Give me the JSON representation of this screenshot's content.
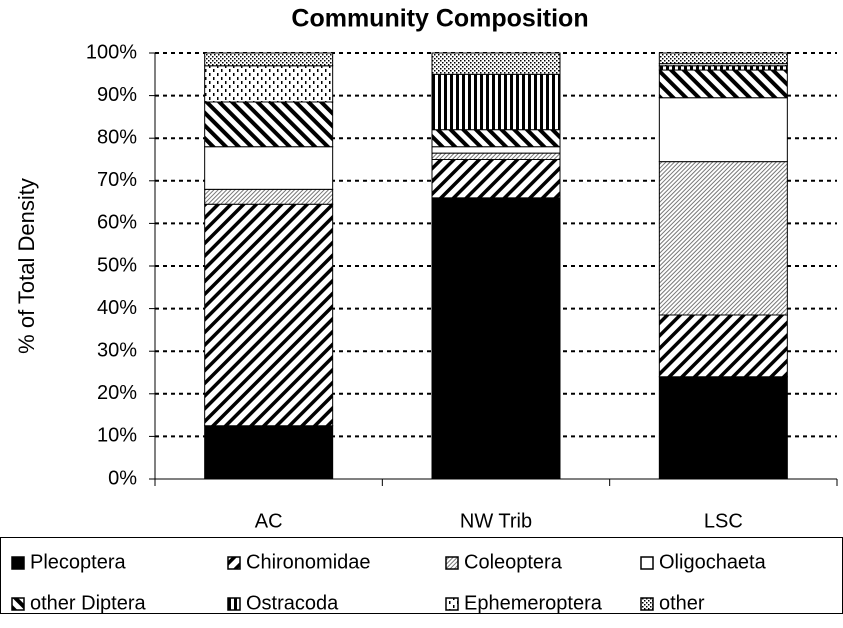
{
  "chart_data": {
    "type": "stacked-bar",
    "title": "Community Composition",
    "y_label": "% of Total Density",
    "categories": [
      "AC",
      "NW Trib",
      "LSC"
    ],
    "series": [
      {
        "name": "Plecoptera",
        "color": "#000000",
        "pattern": "solid",
        "values": [
          12.5,
          66,
          24
        ]
      },
      {
        "name": "Chironomidae",
        "color": "#000000",
        "pattern": "wide-up-diagonal",
        "values": [
          52,
          9,
          14.5
        ]
      },
      {
        "name": "Coleoptera",
        "color": "#000000",
        "pattern": "fine-up-diagonal",
        "values": [
          3.5,
          1.5,
          36
        ]
      },
      {
        "name": "Oligochaeta",
        "color": "#ffffff",
        "pattern": "solid",
        "values": [
          10,
          1.5,
          15
        ]
      },
      {
        "name": "other Diptera",
        "color": "#000000",
        "pattern": "wide-down-diagonal",
        "values": [
          10.5,
          4,
          6.5
        ]
      },
      {
        "name": "Ostracoda",
        "color": "#000000",
        "pattern": "vertical",
        "values": [
          0,
          13,
          1
        ]
      },
      {
        "name": "Ephemeroptera",
        "color": "#000000",
        "pattern": "sparse-dots",
        "values": [
          8.5,
          0,
          0.5
        ]
      },
      {
        "name": "other",
        "color": "#000000",
        "pattern": "dense-dots",
        "values": [
          3,
          5,
          2.5
        ]
      }
    ],
    "ylim": [
      0,
      100
    ],
    "yticks": [
      {
        "value": 0,
        "label": "0%"
      },
      {
        "value": 10,
        "label": "10%"
      },
      {
        "value": 20,
        "label": "20%"
      },
      {
        "value": 30,
        "label": "30%"
      },
      {
        "value": 40,
        "label": "40%"
      },
      {
        "value": 50,
        "label": "50%"
      },
      {
        "value": 60,
        "label": "60%"
      },
      {
        "value": 70,
        "label": "70%"
      },
      {
        "value": 80,
        "label": "80%"
      },
      {
        "value": 90,
        "label": "90%"
      },
      {
        "value": 100,
        "label": "100%"
      }
    ],
    "grid": true,
    "legend": "bottom"
  }
}
